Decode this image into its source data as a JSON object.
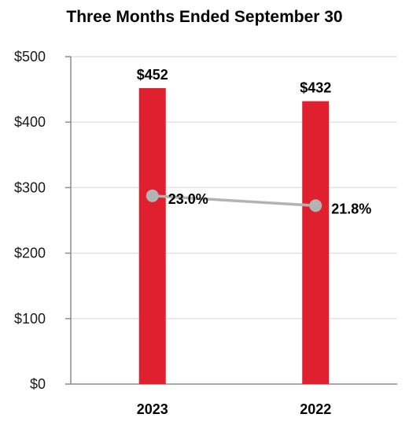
{
  "chart_data": {
    "type": "bar",
    "title": "Three Months Ended September 30",
    "categories": [
      "2023",
      "2022"
    ],
    "series": [
      {
        "values": [
          452,
          432
        ],
        "value_labels": [
          "$452",
          "$432"
        ],
        "color": "#e01f2f"
      }
    ],
    "line_series": {
      "values": [
        23.0,
        21.8
      ],
      "labels": [
        "23.0%",
        "21.8%"
      ],
      "color": "#b3b3b3"
    },
    "y_ticks": [
      "$0",
      "$100",
      "$200",
      "$300",
      "$400",
      "$500"
    ],
    "ylim": [
      0,
      500
    ],
    "grid": true,
    "legend": "none"
  }
}
